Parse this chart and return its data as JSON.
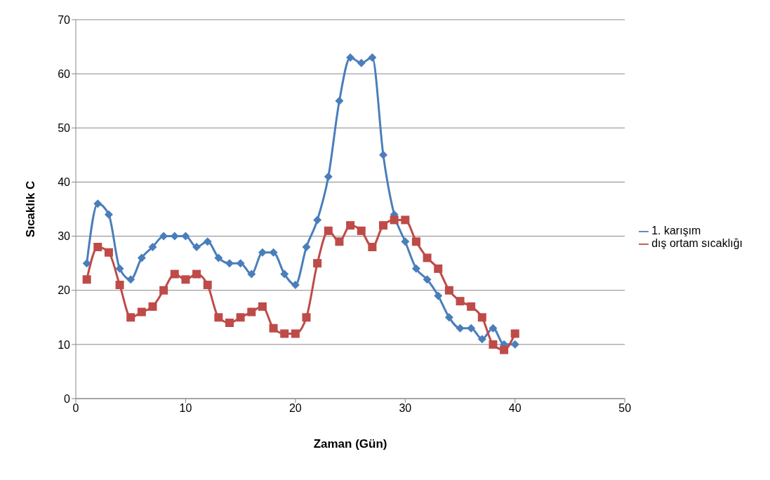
{
  "chart_data": {
    "type": "line",
    "xlabel": "Zaman (Gün)",
    "ylabel": "Sıcaklık C",
    "x": [
      1,
      2,
      3,
      4,
      5,
      6,
      7,
      8,
      9,
      10,
      11,
      12,
      13,
      14,
      15,
      16,
      17,
      18,
      19,
      20,
      21,
      22,
      23,
      24,
      25,
      26,
      27,
      28,
      29,
      30,
      31,
      32,
      33,
      34,
      35,
      36,
      37,
      38,
      39,
      40
    ],
    "series": [
      {
        "name": "1. karışım",
        "color": "#4a7ebb",
        "marker": "diamond",
        "values": [
          25,
          36,
          34,
          24,
          22,
          26,
          28,
          30,
          30,
          30,
          28,
          29,
          26,
          25,
          25,
          23,
          27,
          27,
          23,
          21,
          28,
          33,
          41,
          55,
          63,
          62,
          63,
          45,
          34,
          29,
          24,
          22,
          19,
          15,
          13,
          13,
          11,
          13,
          10,
          10
        ]
      },
      {
        "name": "dış ortam sıcaklığı",
        "color": "#be4b48",
        "marker": "square",
        "values": [
          22,
          28,
          27,
          21,
          15,
          16,
          17,
          20,
          23,
          22,
          23,
          21,
          15,
          14,
          15,
          16,
          17,
          13,
          12,
          12,
          15,
          25,
          31,
          29,
          32,
          31,
          28,
          32,
          33,
          33,
          29,
          26,
          24,
          20,
          18,
          17,
          15,
          10,
          9,
          12
        ]
      }
    ],
    "xlim": [
      0,
      50
    ],
    "xticks": [
      0,
      10,
      20,
      30,
      40,
      50
    ],
    "ylim": [
      0,
      70
    ],
    "yticks": [
      0,
      10,
      20,
      30,
      40,
      50,
      60,
      70
    ],
    "grid": "y",
    "legend": "right",
    "line_style": "solid"
  }
}
